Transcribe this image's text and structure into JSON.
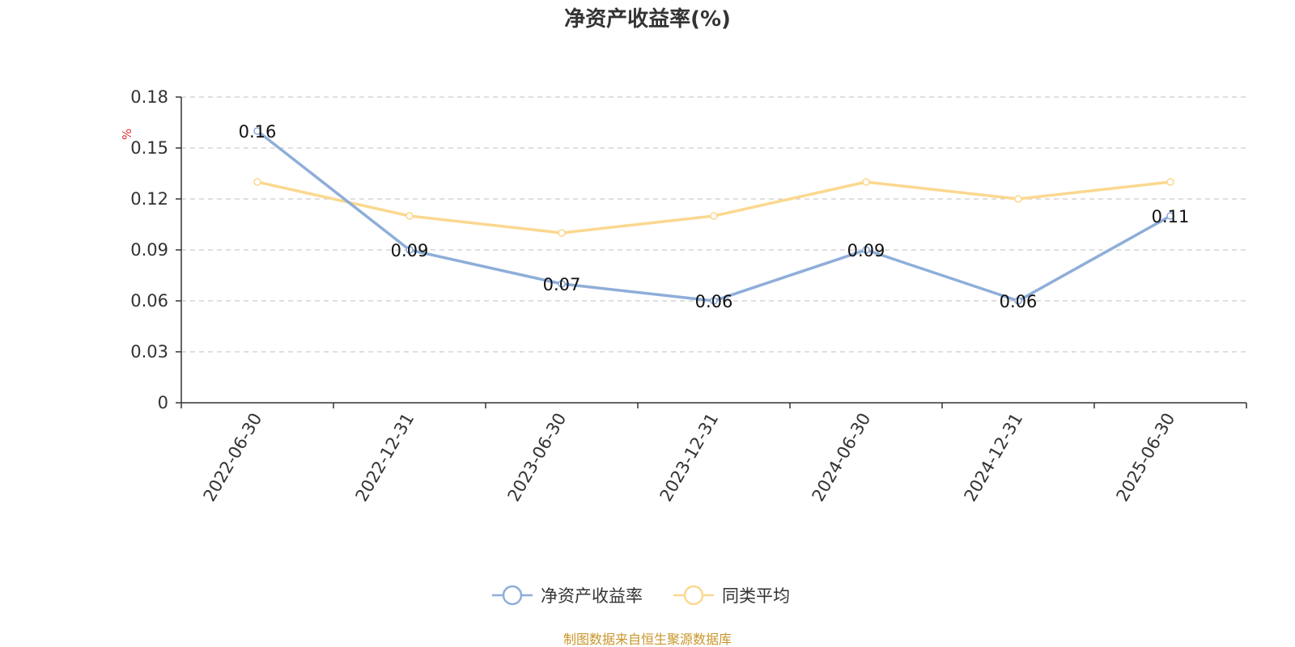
{
  "chart_data": {
    "type": "line",
    "title": "净资产收益率(%)",
    "ylabel": "%",
    "xlabel": "",
    "categories": [
      "2022-06-30",
      "2022-12-31",
      "2023-06-30",
      "2023-12-31",
      "2024-06-30",
      "2024-12-31",
      "2025-06-30"
    ],
    "ylim": [
      0,
      0.18
    ],
    "yticks": [
      "0",
      "0.03",
      "0.06",
      "0.09",
      "0.12",
      "0.15",
      "0.18"
    ],
    "grid": true,
    "legend_position": "bottom-center",
    "series": [
      {
        "name": "净资产收益率",
        "color": "#8eaed9",
        "values": [
          0.16,
          0.09,
          0.07,
          0.06,
          0.09,
          0.06,
          0.11
        ],
        "labels": [
          "0.16",
          "0.09",
          "0.07",
          "0.06",
          "0.09",
          "0.06",
          "0.11"
        ],
        "show_labels": true
      },
      {
        "name": "同类平均",
        "color": "#fbd88f",
        "values": [
          0.13,
          0.11,
          0.1,
          0.11,
          0.13,
          0.12,
          0.13
        ],
        "show_labels": false
      }
    ]
  },
  "source_note": "制图数据来自恒生聚源数据库"
}
